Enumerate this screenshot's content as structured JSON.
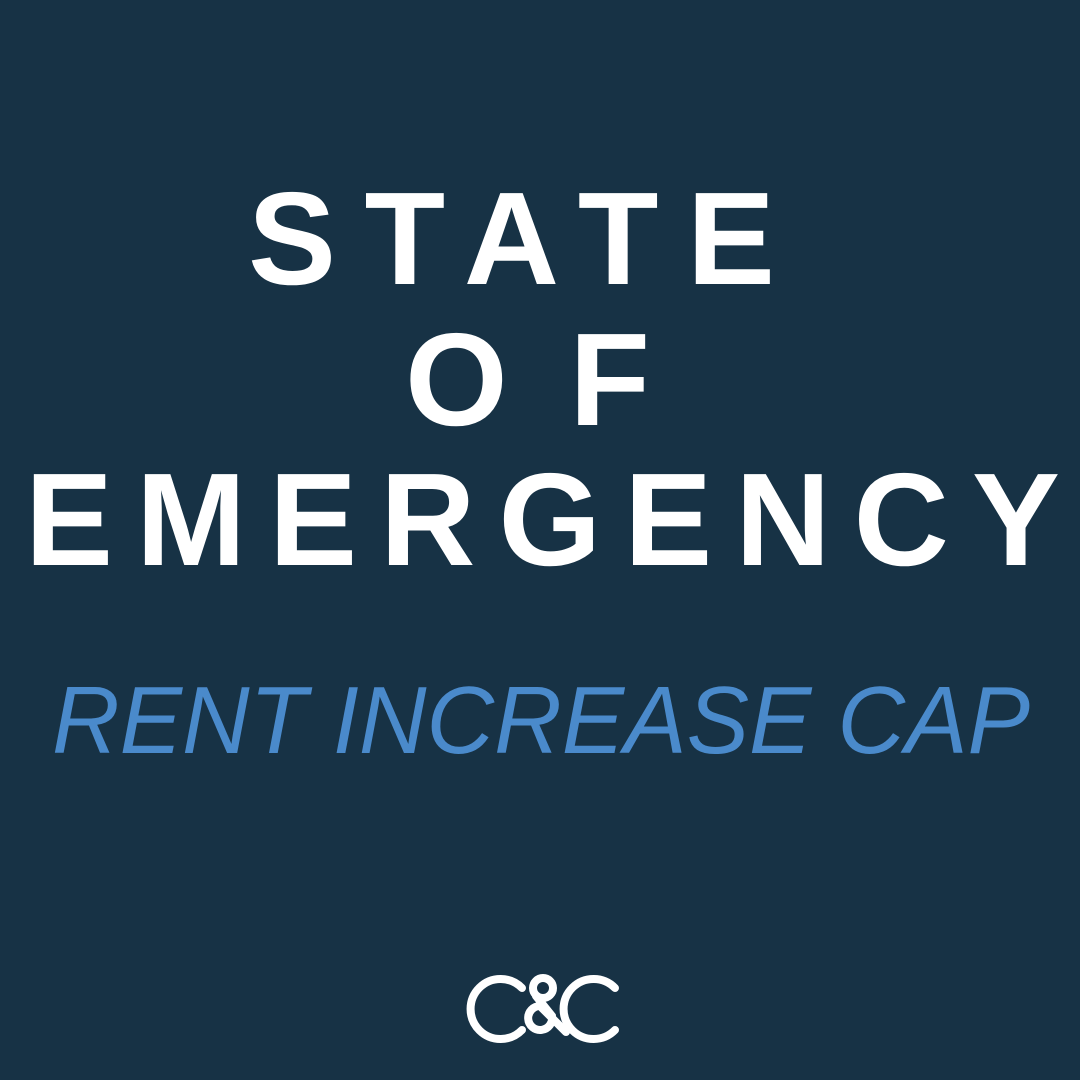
{
  "headline": {
    "line1": "STATE",
    "line2": "OF",
    "line3": "EMERGENCY"
  },
  "subheadline": "RENT INCREASE CAP",
  "logo": {
    "text": "C&C",
    "icon": "location-pin-ampersand-icon"
  },
  "colors": {
    "background": "#173245",
    "headline": "#ffffff",
    "subheadline": "#4a8acb"
  }
}
